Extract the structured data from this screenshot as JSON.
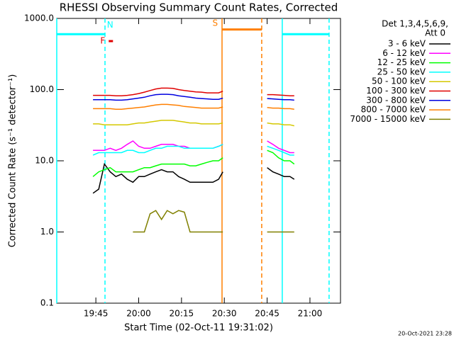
{
  "chart_data": {
    "type": "line",
    "title": "RHESSI Observing Summary Count Rates, Corrected",
    "xlabel": "Start Time (02-Oct-11 19:31:02)",
    "ylabel": "Corrected Count Rate (s⁻¹ detector⁻¹)",
    "legend_title": [
      "Det 1,3,4,5,6,9,",
      "Att 0"
    ],
    "timestamp": "20-Oct-2021 23:28",
    "log_y": true,
    "xlim": [
      31.3,
      130.7
    ],
    "ylim": [
      0.1,
      1000
    ],
    "xticks": [
      {
        "value": 45,
        "label": "19:45"
      },
      {
        "value": 60,
        "label": "20:00"
      },
      {
        "value": 75,
        "label": "20:15"
      },
      {
        "value": 90,
        "label": "20:30"
      },
      {
        "value": 105,
        "label": "20:45"
      },
      {
        "value": 120,
        "label": "21:00"
      }
    ],
    "yticks": [
      0.1,
      {
        "value": 1,
        "label": "1.0"
      },
      {
        "value": 10,
        "label": "10.0"
      },
      {
        "value": 100,
        "label": "100.0"
      },
      {
        "value": 1000,
        "label": "1000.0"
      }
    ],
    "x": [
      44,
      46,
      48,
      50,
      52,
      54,
      56,
      58,
      60,
      62,
      64,
      66,
      68,
      70,
      72,
      74,
      76,
      78,
      80,
      82,
      84,
      86,
      88,
      89.5,
      97,
      105,
      107,
      109,
      111,
      113,
      114.5
    ],
    "series": [
      {
        "name": "3 - 6 keV",
        "color": "#000000",
        "values": [
          3.5,
          4,
          9,
          7,
          6,
          6.5,
          5.5,
          5,
          6,
          6,
          6.5,
          7,
          7.5,
          7,
          7,
          6,
          5.5,
          5,
          5,
          5,
          5,
          5,
          5.5,
          7,
          null,
          8,
          7,
          6.5,
          6,
          6,
          5.5
        ]
      },
      {
        "name": "6 - 12 keV",
        "color": "#ff00ff",
        "values": [
          14,
          14,
          14,
          15,
          14,
          15,
          17,
          19,
          16,
          15,
          15,
          16,
          17,
          17,
          17,
          16,
          16,
          15,
          15,
          15,
          15,
          15,
          16,
          17,
          null,
          19,
          17,
          15,
          14,
          13,
          13
        ]
      },
      {
        "name": "12 - 25 keV",
        "color": "#00ff00",
        "values": [
          6,
          7,
          7.5,
          8,
          7,
          7,
          7,
          7,
          7.5,
          8,
          8,
          8.5,
          9,
          9,
          9,
          9,
          9,
          8.5,
          8.5,
          9,
          9.5,
          10,
          10,
          11,
          null,
          14,
          13,
          11,
          10,
          10,
          9
        ]
      },
      {
        "name": "25 - 50 keV",
        "color": "#00ffff",
        "values": [
          12,
          13,
          13,
          13,
          13,
          13,
          14,
          14,
          13,
          13,
          14,
          15,
          15,
          16,
          16,
          16,
          15,
          15,
          15,
          15,
          15,
          15,
          16,
          17,
          null,
          16,
          15,
          14,
          13,
          12,
          12
        ]
      },
      {
        "name": "50 - 100 keV",
        "color": "#d4c800",
        "values": [
          33,
          33,
          32,
          32,
          32,
          32,
          32,
          33,
          34,
          34,
          35,
          36,
          37,
          37,
          37,
          36,
          35,
          34,
          34,
          33,
          33,
          33,
          33,
          34,
          null,
          34,
          33,
          33,
          32,
          32,
          31
        ]
      },
      {
        "name": "100 - 300 keV",
        "color": "#e00000",
        "values": [
          83,
          83,
          83,
          83,
          82,
          82,
          83,
          85,
          88,
          92,
          97,
          102,
          105,
          105,
          104,
          100,
          97,
          95,
          93,
          92,
          90,
          90,
          90,
          95,
          null,
          85,
          85,
          84,
          83,
          82,
          82
        ]
      },
      {
        "name": "300 - 800 keV",
        "color": "#0000e0",
        "values": [
          72,
          72,
          72,
          72,
          71,
          71,
          72,
          74,
          76,
          78,
          82,
          85,
          86,
          86,
          85,
          82,
          80,
          78,
          76,
          75,
          74,
          73,
          73,
          76,
          null,
          75,
          74,
          73,
          72,
          72,
          71
        ]
      },
      {
        "name": "800 - 7000 keV",
        "color": "#ff7f00",
        "values": [
          54,
          54,
          54,
          54,
          53,
          53,
          54,
          55,
          56,
          57,
          59,
          61,
          62,
          62,
          61,
          60,
          58,
          57,
          56,
          55,
          55,
          55,
          55,
          57,
          null,
          56,
          55,
          55,
          54,
          54,
          53
        ]
      },
      {
        "name": "7000 - 15000 keV",
        "color": "#808000",
        "values": [
          null,
          null,
          null,
          null,
          null,
          null,
          null,
          1,
          1,
          1,
          1.8,
          2,
          1.5,
          2,
          1.8,
          2,
          1.9,
          1,
          1,
          1,
          1,
          1,
          1,
          1,
          null,
          1,
          1,
          1,
          1,
          1,
          1
        ]
      }
    ],
    "time_bars": [
      {
        "start": 31.3,
        "end": 48.2,
        "level": 600,
        "color": "#00ffff"
      },
      {
        "start": 110.3,
        "end": 126.7,
        "level": 600,
        "color": "#00ffff"
      },
      {
        "start": 49.5,
        "end": 51,
        "level": 480,
        "color": "#e00000"
      },
      {
        "start": 89.2,
        "end": 103.1,
        "level": 700,
        "color": "#ff7f00"
      }
    ],
    "time_lines": [
      {
        "x": 31.3,
        "color": "#00ffff",
        "dashed": false
      },
      {
        "x": 48.2,
        "color": "#00ffff",
        "dashed": true
      },
      {
        "x": 110.3,
        "color": "#00ffff",
        "dashed": false
      },
      {
        "x": 126.7,
        "color": "#00ffff",
        "dashed": true
      },
      {
        "x": 89.2,
        "color": "#ff7f00",
        "dashed": false
      },
      {
        "x": 103.1,
        "color": "#ff7f00",
        "dashed": true
      }
    ],
    "annotations": [
      {
        "text": "N",
        "x": 50,
        "level": 800,
        "color": "#00ffff"
      },
      {
        "text": "F",
        "x": 47.4,
        "level": 480,
        "color": "#e00000"
      },
      {
        "text": "S",
        "x": 86.8,
        "level": 850,
        "color": "#ff7f00"
      }
    ]
  }
}
